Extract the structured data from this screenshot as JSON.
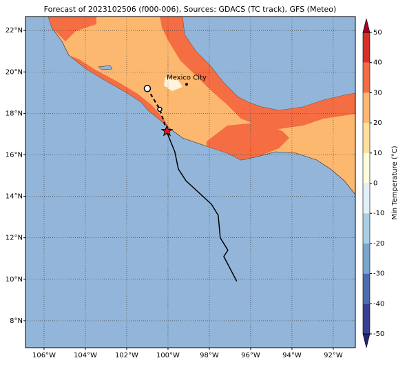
{
  "chart_data": {
    "type": "track-map",
    "title": "Forecast of 2023102506 (f000-006), Sources: GDACS (TC track), GFS (Meteo)",
    "xlim": [
      -106.9,
      -90.93
    ],
    "ylim": [
      6.7,
      22.67
    ],
    "xticks": [
      {
        "value": -106,
        "label": "106°W"
      },
      {
        "value": -104,
        "label": "104°W"
      },
      {
        "value": -102,
        "label": "102°W"
      },
      {
        "value": -100,
        "label": "100°W"
      },
      {
        "value": -98,
        "label": "98°W"
      },
      {
        "value": -96,
        "label": "96°W"
      },
      {
        "value": -94,
        "label": "94°W"
      },
      {
        "value": -92,
        "label": "92°W"
      }
    ],
    "yticks": [
      {
        "value": 8,
        "label": "8°N"
      },
      {
        "value": 10,
        "label": "10°N"
      },
      {
        "value": 12,
        "label": "12°N"
      },
      {
        "value": 14,
        "label": "14°N"
      },
      {
        "value": 16,
        "label": "16°N"
      },
      {
        "value": 18,
        "label": "18°N"
      },
      {
        "value": 20,
        "label": "20°N"
      },
      {
        "value": 22,
        "label": "22°N"
      }
    ],
    "grid": true,
    "track": {
      "color": "#000000",
      "x": [
        -100.1,
        -99.67,
        -99.5,
        -99.13,
        -97.9,
        -97.57,
        -97.47,
        -97.1,
        -97.3,
        -96.67
      ],
      "y": [
        17.2,
        16.15,
        15.32,
        14.75,
        13.62,
        13.09,
        12.0,
        11.4,
        11.1,
        9.9
      ]
    },
    "forecast_track": {
      "color": "#000000",
      "x": [
        -100.05,
        -100.4,
        -101.0
      ],
      "y": [
        17.15,
        18.2,
        19.2
      ]
    },
    "forecast_points": {
      "x": [
        -101.0,
        -100.4
      ],
      "y": [
        19.2,
        18.2
      ]
    },
    "current_position": {
      "x": -100.05,
      "y": 17.15,
      "color": "#e8141c"
    },
    "city": {
      "label": "Mexico City",
      "x": -99.1,
      "y": 19.4
    },
    "colorbar": {
      "label": "Min Temperature (°C)",
      "lim": [
        -50,
        50
      ],
      "ticks": [
        -50,
        -40,
        -30,
        -20,
        -10,
        0,
        10,
        20,
        30,
        40,
        50
      ],
      "colors": [
        "#3a3f96",
        "#4a6db0",
        "#77a6cf",
        "#a9cfe4",
        "#e2f1f6",
        "#fffcdc",
        "#fee09a",
        "#fdb870",
        "#f46d43",
        "#d73027"
      ],
      "under_color": "#24246e",
      "over_color": "#a50026"
    }
  }
}
